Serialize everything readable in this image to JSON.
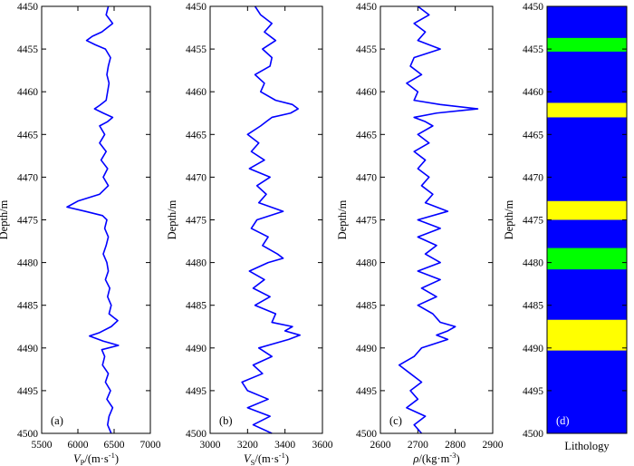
{
  "chart_data": [
    {
      "type": "line",
      "panel_tag": "(a)",
      "xlabel_symbol": "V",
      "xlabel_sub": "P",
      "xlabel_unit": "/(m·s",
      "xlabel_exp": "-1",
      "xlabel_close": ")",
      "ylabel": "Depth/m",
      "xlim": [
        5500,
        7000
      ],
      "xticks": [
        5500,
        6000,
        6500,
        7000
      ],
      "ylim": [
        4450,
        4500
      ],
      "yticks": [
        4450,
        4455,
        4460,
        4465,
        4470,
        4475,
        4480,
        4485,
        4490,
        4495,
        4500
      ],
      "line_color": "#0000ff",
      "depth": [
        4450,
        4451,
        4452,
        4453,
        4453.5,
        4454,
        4454.5,
        4455,
        4456,
        4457,
        4458,
        4459,
        4460,
        4461,
        4461.6,
        4462,
        4462.5,
        4463,
        4463.5,
        4464,
        4465,
        4466,
        4467,
        4468,
        4469,
        4470,
        4471,
        4472,
        4472.8,
        4473.5,
        4474,
        4474.5,
        4475,
        4476,
        4477,
        4478,
        4479,
        4480,
        4481,
        4482,
        4483,
        4484,
        4485,
        4486,
        4486.8,
        4487.5,
        4488.2,
        4488.6,
        4489.2,
        4489.7,
        4490.2,
        4491,
        4492,
        4493,
        4494,
        4495,
        4496,
        4497,
        4498,
        4499,
        4500
      ],
      "values": [
        6420,
        6390,
        6480,
        6330,
        6200,
        6120,
        6240,
        6380,
        6450,
        6420,
        6400,
        6430,
        6410,
        6390,
        6300,
        6230,
        6350,
        6480,
        6410,
        6300,
        6370,
        6300,
        6390,
        6320,
        6410,
        6350,
        6420,
        6300,
        6000,
        5850,
        6100,
        6340,
        6400,
        6370,
        6420,
        6390,
        6350,
        6400,
        6420,
        6380,
        6440,
        6410,
        6460,
        6430,
        6550,
        6460,
        6300,
        6160,
        6350,
        6560,
        6330,
        6370,
        6340,
        6420,
        6380,
        6450,
        6400,
        6480,
        6430,
        6410,
        6460
      ]
    },
    {
      "type": "line",
      "panel_tag": "(b)",
      "xlabel_symbol": "V",
      "xlabel_sub": "S",
      "xlabel_unit": "/(m·s",
      "xlabel_exp": "-1",
      "xlabel_close": ")",
      "ylabel": "Depth/m",
      "xlim": [
        3000,
        3600
      ],
      "xticks": [
        3000,
        3200,
        3400,
        3600
      ],
      "ylim": [
        4450,
        4500
      ],
      "yticks": [
        4450,
        4455,
        4460,
        4465,
        4470,
        4475,
        4480,
        4485,
        4490,
        4495,
        4500
      ],
      "line_color": "#0000ff",
      "depth": [
        4450,
        4451,
        4452,
        4453,
        4454,
        4455,
        4456,
        4457,
        4458,
        4459,
        4460,
        4461,
        4461.5,
        4462,
        4462.5,
        4463,
        4463.5,
        4464,
        4465,
        4466,
        4467,
        4468,
        4469,
        4470,
        4471,
        4472,
        4473,
        4474,
        4475,
        4476,
        4477,
        4478,
        4479,
        4479.5,
        4480,
        4481,
        4482,
        4483,
        4484,
        4485,
        4486,
        4487,
        4487.5,
        4488,
        4488.5,
        4489,
        4490,
        4491,
        4492,
        4493,
        4494,
        4495,
        4496,
        4497,
        4498,
        4499,
        4500
      ],
      "values": [
        3240,
        3270,
        3330,
        3290,
        3350,
        3280,
        3330,
        3320,
        3240,
        3290,
        3270,
        3350,
        3440,
        3470,
        3430,
        3330,
        3300,
        3270,
        3200,
        3260,
        3220,
        3290,
        3210,
        3320,
        3250,
        3300,
        3260,
        3390,
        3250,
        3220,
        3310,
        3280,
        3360,
        3390,
        3310,
        3210,
        3290,
        3230,
        3320,
        3240,
        3350,
        3330,
        3440,
        3400,
        3480,
        3420,
        3260,
        3330,
        3230,
        3280,
        3170,
        3200,
        3310,
        3200,
        3320,
        3230,
        3330
      ]
    },
    {
      "type": "line",
      "panel_tag": "(c)",
      "xlabel_symbol": "ρ",
      "xlabel_sub": "",
      "xlabel_unit": "/(kg·m",
      "xlabel_exp": "-3",
      "xlabel_close": ")",
      "ylabel": "Depth/m",
      "xlim": [
        2600,
        2900
      ],
      "xticks": [
        2600,
        2700,
        2800,
        2900
      ],
      "ylim": [
        4450,
        4500
      ],
      "yticks": [
        4450,
        4455,
        4460,
        4465,
        4470,
        4475,
        4480,
        4485,
        4490,
        4495,
        4500
      ],
      "line_color": "#0000ff",
      "depth": [
        4450,
        4451,
        4452,
        4453,
        4454,
        4455,
        4456,
        4457,
        4458,
        4459,
        4460,
        4461,
        4461.5,
        4462,
        4462.5,
        4463,
        4463.5,
        4464,
        4465,
        4466,
        4467,
        4468,
        4469,
        4470,
        4471,
        4472,
        4473,
        4474,
        4475,
        4476,
        4477,
        4478,
        4479,
        4480,
        4481,
        4482,
        4483,
        4484,
        4485,
        4486,
        4487,
        4487.5,
        4488,
        4488.5,
        4489,
        4490,
        4491,
        4492,
        4493,
        4494,
        4495,
        4496,
        4497,
        4498,
        4499,
        4500
      ],
      "values": [
        2700,
        2730,
        2690,
        2720,
        2700,
        2760,
        2690,
        2680,
        2710,
        2670,
        2700,
        2690,
        2760,
        2860,
        2750,
        2690,
        2720,
        2740,
        2700,
        2730,
        2690,
        2720,
        2700,
        2730,
        2710,
        2740,
        2720,
        2780,
        2700,
        2760,
        2700,
        2750,
        2720,
        2760,
        2700,
        2760,
        2710,
        2750,
        2700,
        2740,
        2760,
        2800,
        2780,
        2750,
        2780,
        2710,
        2690,
        2650,
        2680,
        2710,
        2680,
        2700,
        2670,
        2720,
        2690,
        2710,
        2700
      ]
    },
    {
      "type": "heatmap",
      "panel_tag": "(d)",
      "xlabel": "Lithology",
      "ylim": [
        4450,
        4500
      ],
      "yticks": [
        4450,
        4455,
        4460,
        4465,
        4470,
        4475,
        4480,
        4485,
        4490,
        4495,
        4500
      ],
      "ylabel": "Depth/m",
      "background_color": "#0000ff",
      "bands": [
        {
          "top": 4453.7,
          "bottom": 4455.3,
          "color": "#00ff00"
        },
        {
          "top": 4461.3,
          "bottom": 4463.0,
          "color": "#ffff00"
        },
        {
          "top": 4472.8,
          "bottom": 4475.0,
          "color": "#ffff00"
        },
        {
          "top": 4478.3,
          "bottom": 4480.8,
          "color": "#00ff00"
        },
        {
          "top": 4486.7,
          "bottom": 4490.3,
          "color": "#ffff00"
        }
      ]
    }
  ]
}
